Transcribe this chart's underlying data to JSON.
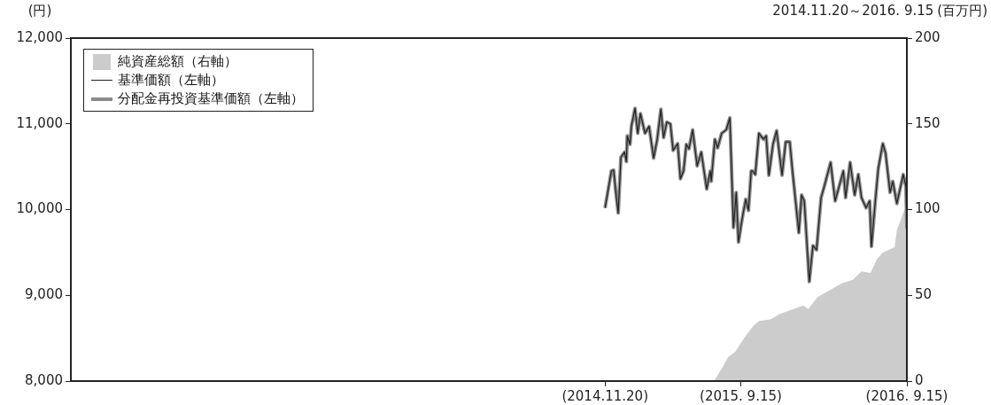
{
  "chart_data": {
    "type": "line",
    "subtitle": "2014.11.20～2016. 9.15",
    "ylabel": "(円)",
    "y2label": "(百万円)",
    "x": [
      "2014-11-20",
      "2014-12-04",
      "2014-12-09",
      "2014-12-13",
      "2014-12-19",
      "2014-12-25",
      "2015-01-02",
      "2015-01-06",
      "2015-01-08",
      "2015-01-14",
      "2015-01-17",
      "2015-01-25",
      "2015-01-31",
      "2015-02-06",
      "2015-02-16",
      "2015-02-25",
      "2015-03-07",
      "2015-03-15",
      "2015-03-23",
      "2015-03-29",
      "2015-04-05",
      "2015-04-13",
      "2015-04-19",
      "2015-04-29",
      "2015-05-05",
      "2015-05-12",
      "2015-05-18",
      "2015-05-24",
      "2015-06-01",
      "2015-06-11",
      "2015-06-20",
      "2015-07-02",
      "2015-07-10",
      "2015-07-12",
      "2015-07-20",
      "2015-07-26",
      "2015-08-04",
      "2015-08-14",
      "2015-08-22",
      "2015-08-30",
      "2015-09-05",
      "2015-09-10",
      "2015-09-18",
      "2015-09-26",
      "2015-10-02",
      "2015-10-08",
      "2015-10-11",
      "2015-10-17",
      "2015-10-25",
      "2015-11-04",
      "2015-11-10",
      "2015-11-16",
      "2015-11-25",
      "2015-12-03",
      "2015-12-15",
      "2015-12-23",
      "2016-01-01",
      "2016-01-07",
      "2016-01-21",
      "2016-01-27",
      "2016-02-02",
      "2016-02-13",
      "2016-02-21",
      "2016-02-29",
      "2016-03-10",
      "2016-03-17",
      "2016-03-31",
      "2016-04-10",
      "2016-04-28",
      "2016-05-03",
      "2016-05-13",
      "2016-05-23",
      "2016-05-31",
      "2016-06-07",
      "2016-06-17",
      "2016-06-25",
      "2016-06-29",
      "2016-07-07",
      "2016-07-14",
      "2016-07-24",
      "2016-07-30",
      "2016-08-09",
      "2016-08-15",
      "2016-08-24",
      "2016-09-07",
      "2016-09-13",
      "2016-09-15"
    ],
    "series": [
      {
        "type": "area",
        "axis": "y2",
        "name": "純資産総額（右軸）",
        "color": "#cccccc",
        "x": [
          "2015-07-18",
          "2015-08-08",
          "2015-08-18",
          "2015-09-03",
          "2015-09-22",
          "2015-10-12",
          "2015-10-25",
          "2015-11-20",
          "2015-12-09",
          "2015-12-29",
          "2016-01-31",
          "2016-02-11",
          "2016-03-02",
          "2016-03-29",
          "2016-04-24",
          "2016-05-19",
          "2016-06-07",
          "2016-06-27",
          "2016-07-11",
          "2016-07-24",
          "2016-08-19",
          "2016-08-24",
          "2016-09-07",
          "2016-09-15"
        ],
        "values": [
          0,
          9,
          14,
          17,
          25,
          32,
          35,
          36,
          39,
          41,
          44,
          42,
          49,
          53,
          57,
          59,
          64,
          63,
          71,
          75,
          78,
          88,
          98,
          102
        ]
      },
      {
        "type": "line",
        "name": "基準価額（左軸）",
        "color": "#222222",
        "values": [
          10020,
          10450,
          10460,
          10240,
          9960,
          10610,
          10670,
          10560,
          10860,
          10760,
          10970,
          11180,
          10890,
          11120,
          10890,
          10970,
          10600,
          10820,
          11170,
          10840,
          11020,
          11000,
          10690,
          10770,
          10360,
          10450,
          10760,
          10710,
          10930,
          10510,
          10670,
          10240,
          10450,
          10330,
          10820,
          10720,
          10890,
          10930,
          11070,
          9790,
          10200,
          9620,
          9890,
          10120,
          9990,
          10450,
          10450,
          10410,
          10890,
          10820,
          10860,
          10400,
          10760,
          10920,
          10400,
          10790,
          10790,
          10450,
          9730,
          10170,
          10100,
          9160,
          9580,
          9530,
          10140,
          10270,
          10550,
          10100,
          10450,
          10140,
          10550,
          10170,
          10410,
          10140,
          10020,
          10100,
          9570,
          10070,
          10480,
          10770,
          10660,
          10200,
          10330,
          10070,
          10410,
          10270,
          9780
        ]
      },
      {
        "type": "line",
        "name": "分配金再投資基準価額（左軸）",
        "color": "#8c8c8c",
        "values": [
          10020,
          10450,
          10460,
          10240,
          9960,
          10610,
          10670,
          10560,
          10860,
          10760,
          10970,
          11180,
          10890,
          11120,
          10890,
          10970,
          10600,
          10820,
          11170,
          10840,
          11020,
          11000,
          10690,
          10770,
          10360,
          10450,
          10760,
          10710,
          10930,
          10510,
          10670,
          10240,
          10450,
          10330,
          10820,
          10720,
          10890,
          10930,
          11070,
          9790,
          10200,
          9620,
          9890,
          10120,
          9990,
          10450,
          10450,
          10410,
          10890,
          10820,
          10860,
          10400,
          10760,
          10920,
          10400,
          10790,
          10790,
          10450,
          9730,
          10170,
          10100,
          9160,
          9580,
          9530,
          10140,
          10270,
          10550,
          10100,
          10450,
          10140,
          10550,
          10170,
          10410,
          10140,
          10020,
          10100,
          9570,
          10070,
          10480,
          10770,
          10660,
          10200,
          10330,
          10070,
          10410,
          10270,
          9780
        ]
      }
    ],
    "xlim": [
      "2011-08-31",
      "2016-09-15"
    ],
    "xticks": [
      {
        "value": "2014-11-20",
        "label": "(2014.11.20)"
      },
      {
        "value": "2015-09-15",
        "label": "(2015. 9.15)"
      },
      {
        "value": "2016-09-15",
        "label": "(2016. 9.15)"
      }
    ],
    "ylim": [
      8000,
      12000
    ],
    "yticks": [
      {
        "value": 8000,
        "label": "8,000"
      },
      {
        "value": 9000,
        "label": "9,000"
      },
      {
        "value": 10000,
        "label": "10,000"
      },
      {
        "value": 11000,
        "label": "11,000"
      },
      {
        "value": 12000,
        "label": "12,000"
      }
    ],
    "y2lim": [
      0,
      200
    ],
    "y2ticks": [
      0,
      50,
      100,
      150,
      200
    ],
    "grid": false,
    "legend": "top left",
    "marker": "none",
    "line_style": "solid"
  }
}
